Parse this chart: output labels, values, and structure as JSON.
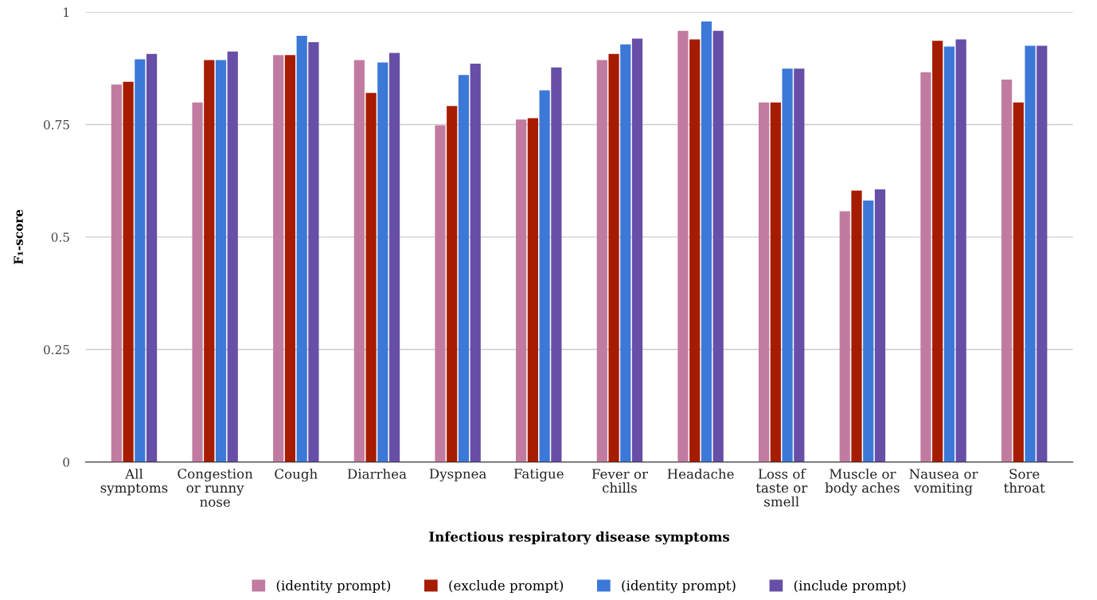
{
  "chart_data": {
    "type": "bar",
    "xlabel": "Infectious respiratory disease symptoms",
    "ylabel": "F₁-score",
    "categories": [
      "All\nsymptoms",
      "Congestion\nor runny\nnose",
      "Cough",
      "Diarrhea",
      "Dyspnea",
      "Fatigue",
      "Fever or\nchills",
      "Headache",
      "Loss of\ntaste or\nsmell",
      "Muscle or\nbody aches",
      "Nausea or\nvomiting",
      "Sore\nthroat"
    ],
    "series": [
      {
        "name": "(identity prompt)",
        "color": "#c27ba0",
        "values": [
          0.839,
          0.799,
          0.904,
          0.893,
          0.748,
          0.761,
          0.893,
          0.958,
          0.799,
          0.557,
          0.866,
          0.85
        ]
      },
      {
        "name": "(exclude prompt)",
        "color": "#a61c00",
        "values": [
          0.845,
          0.893,
          0.904,
          0.82,
          0.791,
          0.764,
          0.907,
          0.939,
          0.799,
          0.603,
          0.936,
          0.799
        ]
      },
      {
        "name": "(identity prompt)",
        "color": "#3c78d8",
        "values": [
          0.895,
          0.893,
          0.947,
          0.888,
          0.86,
          0.826,
          0.928,
          0.979,
          0.874,
          0.581,
          0.923,
          0.925
        ]
      },
      {
        "name": "(include prompt)",
        "color": "#674ea7",
        "values": [
          0.907,
          0.912,
          0.933,
          0.909,
          0.885,
          0.877,
          0.941,
          0.958,
          0.874,
          0.606,
          0.939,
          0.925
        ]
      }
    ],
    "ylim": [
      0,
      1
    ],
    "yticks": [
      0,
      0.25,
      0.5,
      0.75,
      1
    ],
    "grid": "y",
    "legend": "bottom"
  }
}
